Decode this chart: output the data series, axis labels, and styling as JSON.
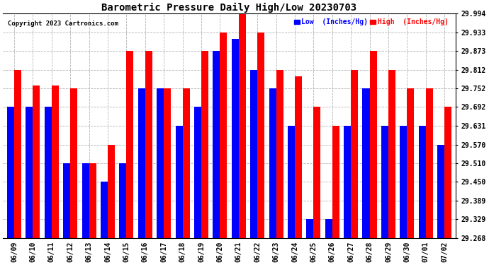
{
  "title": "Barometric Pressure Daily High/Low 20230703",
  "copyright": "Copyright 2023 Cartronics.com",
  "legend_low": "Low  (Inches/Hg)",
  "legend_high": "High  (Inches/Hg)",
  "background_color": "#ffffff",
  "bar_color_low": "#0000ff",
  "bar_color_high": "#ff0000",
  "ylim": [
    29.268,
    29.994
  ],
  "yticks": [
    29.268,
    29.329,
    29.389,
    29.45,
    29.51,
    29.57,
    29.631,
    29.692,
    29.752,
    29.812,
    29.873,
    29.933,
    29.994
  ],
  "dates": [
    "06/09",
    "06/10",
    "06/11",
    "06/12",
    "06/13",
    "06/14",
    "06/15",
    "06/16",
    "06/17",
    "06/18",
    "06/19",
    "06/20",
    "06/21",
    "06/22",
    "06/23",
    "06/24",
    "06/25",
    "06/26",
    "06/27",
    "06/28",
    "06/29",
    "06/30",
    "07/01",
    "07/02"
  ],
  "high": [
    29.812,
    29.762,
    29.762,
    29.752,
    29.51,
    29.57,
    29.873,
    29.873,
    29.752,
    29.752,
    29.873,
    29.933,
    29.994,
    29.933,
    29.812,
    29.792,
    29.692,
    29.631,
    29.812,
    29.873,
    29.812,
    29.752,
    29.752,
    29.692
  ],
  "low": [
    29.692,
    29.692,
    29.692,
    29.51,
    29.51,
    29.45,
    29.51,
    29.752,
    29.752,
    29.631,
    29.692,
    29.873,
    29.912,
    29.812,
    29.752,
    29.631,
    29.329,
    29.329,
    29.631,
    29.752,
    29.631,
    29.631,
    29.631,
    29.57
  ]
}
